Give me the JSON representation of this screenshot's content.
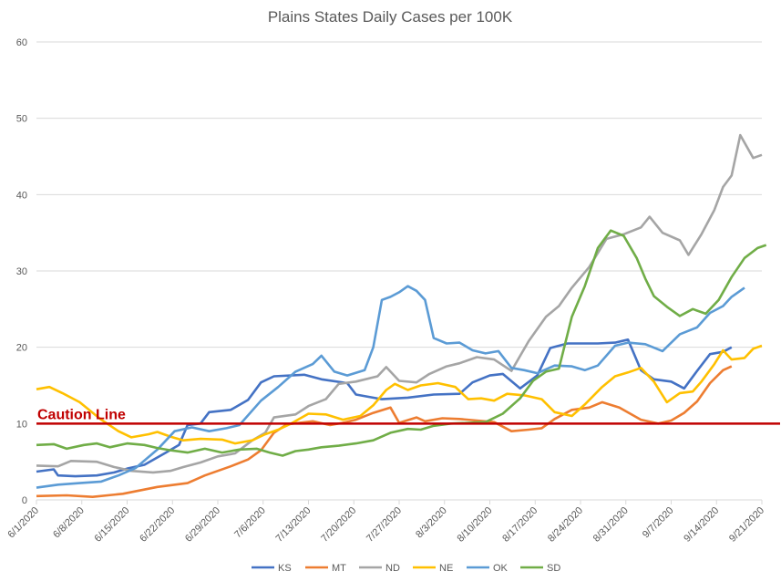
{
  "chart_data": {
    "type": "line",
    "title": "Plains States Daily Cases per 100K",
    "x_tick_labels": [
      "6/1/2020",
      "6/8/2020",
      "6/15/2020",
      "6/22/2020",
      "6/29/2020",
      "7/6/2020",
      "7/13/2020",
      "7/20/2020",
      "7/27/2020",
      "8/3/2020",
      "8/10/2020",
      "8/17/2020",
      "8/24/2020",
      "8/31/2020",
      "9/7/2020",
      "9/14/2020",
      "9/21/2020"
    ],
    "y_ticks": [
      0,
      10,
      20,
      30,
      40,
      50,
      60
    ],
    "ylim": [
      0,
      60
    ],
    "grid": "horizontal",
    "legend": "bottom",
    "reference_line": {
      "label": "Caution Line",
      "value": 10,
      "color": "#c00000"
    },
    "series": [
      {
        "name": "KS",
        "color": "#4472c4",
        "values": [
          [
            0,
            3.7
          ],
          [
            4,
            4
          ],
          [
            5,
            3.2
          ],
          [
            9,
            3.1
          ],
          [
            14,
            3.2
          ],
          [
            18,
            3.6
          ],
          [
            21,
            4.1
          ],
          [
            25,
            4.6
          ],
          [
            30,
            6.2
          ],
          [
            33,
            7.2
          ],
          [
            35,
            9.8
          ],
          [
            38,
            10
          ],
          [
            40,
            11.5
          ],
          [
            45,
            11.8
          ],
          [
            49,
            13.1
          ],
          [
            52,
            15.4
          ],
          [
            55,
            16.2
          ],
          [
            62,
            16.4
          ],
          [
            66,
            15.8
          ],
          [
            72,
            15.3
          ],
          [
            74,
            13.8
          ],
          [
            80,
            13.2
          ],
          [
            86,
            13.4
          ],
          [
            92,
            13.8
          ],
          [
            98,
            13.9
          ],
          [
            101,
            15.4
          ],
          [
            105,
            16.3
          ],
          [
            108,
            16.5
          ],
          [
            112,
            14.6
          ],
          [
            116,
            16.3
          ],
          [
            119,
            19.9
          ],
          [
            123,
            20.5
          ],
          [
            130,
            20.5
          ],
          [
            134,
            20.6
          ],
          [
            137,
            21
          ],
          [
            140,
            17
          ],
          [
            143,
            15.8
          ],
          [
            147,
            15.5
          ],
          [
            150,
            14.6
          ],
          [
            153,
            16.9
          ],
          [
            156,
            19.1
          ],
          [
            159,
            19.4
          ],
          [
            161,
            20
          ]
        ]
      },
      {
        "name": "MT",
        "color": "#ed7d31",
        "values": [
          [
            0,
            0.5
          ],
          [
            7,
            0.6
          ],
          [
            13,
            0.4
          ],
          [
            20,
            0.8
          ],
          [
            28,
            1.7
          ],
          [
            35,
            2.2
          ],
          [
            39,
            3.2
          ],
          [
            45,
            4.4
          ],
          [
            49,
            5.3
          ],
          [
            52,
            6.5
          ],
          [
            55,
            8.8
          ],
          [
            58,
            9.9
          ],
          [
            64,
            10.3
          ],
          [
            68,
            9.8
          ],
          [
            71,
            10.1
          ],
          [
            74,
            10.5
          ],
          [
            78,
            11.4
          ],
          [
            82,
            12.1
          ],
          [
            84,
            10.1
          ],
          [
            88,
            10.8
          ],
          [
            90,
            10.3
          ],
          [
            94,
            10.7
          ],
          [
            98,
            10.6
          ],
          [
            102,
            10.4
          ],
          [
            106,
            10.2
          ],
          [
            110,
            9
          ],
          [
            114,
            9.2
          ],
          [
            117,
            9.4
          ],
          [
            120,
            10.6
          ],
          [
            124,
            11.8
          ],
          [
            128,
            12.1
          ],
          [
            131,
            12.8
          ],
          [
            135,
            12.1
          ],
          [
            140,
            10.5
          ],
          [
            144,
            10
          ],
          [
            147,
            10.4
          ],
          [
            150,
            11.4
          ],
          [
            153,
            12.9
          ],
          [
            156,
            15.3
          ],
          [
            159,
            17
          ],
          [
            161,
            17.5
          ]
        ]
      },
      {
        "name": "ND",
        "color": "#a5a5a5",
        "values": [
          [
            0,
            4.5
          ],
          [
            5,
            4.4
          ],
          [
            8,
            5.1
          ],
          [
            14,
            5
          ],
          [
            18,
            4.3
          ],
          [
            22,
            3.8
          ],
          [
            27,
            3.6
          ],
          [
            31,
            3.8
          ],
          [
            34,
            4.3
          ],
          [
            38,
            4.9
          ],
          [
            42,
            5.7
          ],
          [
            46,
            6.1
          ],
          [
            50,
            7.8
          ],
          [
            53,
            8.8
          ],
          [
            55,
            10.8
          ],
          [
            60,
            11.2
          ],
          [
            63,
            12.3
          ],
          [
            67,
            13.2
          ],
          [
            70,
            15.2
          ],
          [
            74,
            15.5
          ],
          [
            79,
            16.2
          ],
          [
            81,
            17.4
          ],
          [
            84,
            15.6
          ],
          [
            88,
            15.4
          ],
          [
            91,
            16.5
          ],
          [
            95,
            17.5
          ],
          [
            98,
            17.9
          ],
          [
            102,
            18.7
          ],
          [
            106,
            18.4
          ],
          [
            110,
            16.9
          ],
          [
            114,
            20.8
          ],
          [
            118,
            24
          ],
          [
            121,
            25.4
          ],
          [
            124,
            27.8
          ],
          [
            128,
            30.5
          ],
          [
            132,
            34.2
          ],
          [
            136,
            34.8
          ],
          [
            140,
            35.7
          ],
          [
            142,
            37.1
          ],
          [
            145,
            35
          ],
          [
            149,
            34
          ],
          [
            151,
            32.1
          ],
          [
            154,
            34.8
          ],
          [
            157,
            38
          ],
          [
            159,
            41
          ],
          [
            161,
            42.5
          ],
          [
            163,
            47.8
          ],
          [
            166,
            44.8
          ],
          [
            168,
            45.2
          ]
        ]
      },
      {
        "name": "NE",
        "color": "#ffc000",
        "values": [
          [
            0,
            14.5
          ],
          [
            3,
            14.8
          ],
          [
            6,
            14
          ],
          [
            10,
            12.8
          ],
          [
            15,
            10.5
          ],
          [
            19,
            9
          ],
          [
            22,
            8.2
          ],
          [
            26,
            8.6
          ],
          [
            28,
            8.9
          ],
          [
            31,
            8.3
          ],
          [
            34,
            7.8
          ],
          [
            38,
            8
          ],
          [
            43,
            7.9
          ],
          [
            46,
            7.4
          ],
          [
            50,
            7.8
          ],
          [
            53,
            8.6
          ],
          [
            56,
            9.2
          ],
          [
            59,
            10
          ],
          [
            63,
            11.3
          ],
          [
            67,
            11.2
          ],
          [
            71,
            10.5
          ],
          [
            75,
            11
          ],
          [
            78,
            12.4
          ],
          [
            81,
            14.4
          ],
          [
            83,
            15.2
          ],
          [
            86,
            14.4
          ],
          [
            89,
            15
          ],
          [
            93,
            15.3
          ],
          [
            97,
            14.8
          ],
          [
            100,
            13.2
          ],
          [
            103,
            13.3
          ],
          [
            106,
            13
          ],
          [
            109,
            13.9
          ],
          [
            113,
            13.7
          ],
          [
            117,
            13.2
          ],
          [
            120,
            11.5
          ],
          [
            124,
            11
          ],
          [
            127,
            12.5
          ],
          [
            131,
            14.8
          ],
          [
            134,
            16.2
          ],
          [
            137,
            16.7
          ],
          [
            140,
            17.3
          ],
          [
            143,
            15.5
          ],
          [
            146,
            12.8
          ],
          [
            149,
            14
          ],
          [
            152,
            14.2
          ],
          [
            154,
            15.5
          ],
          [
            157,
            17.8
          ],
          [
            159,
            19.6
          ],
          [
            161,
            18.4
          ],
          [
            164,
            18.6
          ],
          [
            166,
            19.8
          ],
          [
            168,
            20.2
          ]
        ]
      },
      {
        "name": "OK",
        "color": "#5b9bd5",
        "values": [
          [
            0,
            1.6
          ],
          [
            5,
            2
          ],
          [
            10,
            2.2
          ],
          [
            15,
            2.4
          ],
          [
            19,
            3.2
          ],
          [
            23,
            4.2
          ],
          [
            28,
            6.6
          ],
          [
            32,
            9
          ],
          [
            36,
            9.5
          ],
          [
            40,
            9
          ],
          [
            44,
            9.4
          ],
          [
            47,
            9.8
          ],
          [
            52,
            13
          ],
          [
            56,
            14.8
          ],
          [
            60,
            16.8
          ],
          [
            64,
            17.8
          ],
          [
            66,
            18.9
          ],
          [
            69,
            16.8
          ],
          [
            72,
            16.3
          ],
          [
            76,
            17
          ],
          [
            78,
            20
          ],
          [
            80,
            26.2
          ],
          [
            82,
            26.6
          ],
          [
            84,
            27.2
          ],
          [
            86,
            28
          ],
          [
            88,
            27.4
          ],
          [
            90,
            26.2
          ],
          [
            92,
            21.2
          ],
          [
            95,
            20.5
          ],
          [
            98,
            20.6
          ],
          [
            101,
            19.6
          ],
          [
            104,
            19.2
          ],
          [
            107,
            19.5
          ],
          [
            110,
            17.3
          ],
          [
            113,
            17
          ],
          [
            116,
            16.6
          ],
          [
            120,
            17.6
          ],
          [
            124,
            17.5
          ],
          [
            127,
            17
          ],
          [
            130,
            17.6
          ],
          [
            134,
            20.2
          ],
          [
            137,
            20.6
          ],
          [
            141,
            20.4
          ],
          [
            145,
            19.5
          ],
          [
            149,
            21.7
          ],
          [
            153,
            22.6
          ],
          [
            156,
            24.5
          ],
          [
            159,
            25.4
          ],
          [
            161,
            26.6
          ],
          [
            164,
            27.8
          ]
        ]
      },
      {
        "name": "SD",
        "color": "#70ad47",
        "values": [
          [
            0,
            7.2
          ],
          [
            4,
            7.3
          ],
          [
            7,
            6.7
          ],
          [
            11,
            7.2
          ],
          [
            14,
            7.4
          ],
          [
            17,
            6.9
          ],
          [
            21,
            7.4
          ],
          [
            25,
            7.2
          ],
          [
            28,
            6.8
          ],
          [
            31,
            6.5
          ],
          [
            35,
            6.2
          ],
          [
            39,
            6.7
          ],
          [
            43,
            6.2
          ],
          [
            47,
            6.6
          ],
          [
            51,
            6.7
          ],
          [
            54,
            6.2
          ],
          [
            57,
            5.8
          ],
          [
            60,
            6.4
          ],
          [
            63,
            6.6
          ],
          [
            66,
            6.9
          ],
          [
            70,
            7.1
          ],
          [
            74,
            7.4
          ],
          [
            78,
            7.8
          ],
          [
            82,
            8.8
          ],
          [
            86,
            9.3
          ],
          [
            89,
            9.2
          ],
          [
            92,
            9.7
          ],
          [
            96,
            10
          ],
          [
            100,
            10.1
          ],
          [
            104,
            10.2
          ],
          [
            108,
            11.3
          ],
          [
            112,
            13.3
          ],
          [
            115,
            15.6
          ],
          [
            118,
            16.8
          ],
          [
            121,
            17.2
          ],
          [
            124,
            24
          ],
          [
            127,
            28
          ],
          [
            130,
            33
          ],
          [
            133,
            35.3
          ],
          [
            136,
            34.6
          ],
          [
            139,
            31.7
          ],
          [
            141,
            29
          ],
          [
            143,
            26.7
          ],
          [
            146,
            25.3
          ],
          [
            149,
            24.1
          ],
          [
            152,
            25
          ],
          [
            155,
            24.4
          ],
          [
            158,
            26.2
          ],
          [
            161,
            29.2
          ],
          [
            164,
            31.7
          ],
          [
            167,
            33
          ],
          [
            169,
            33.4
          ]
        ]
      }
    ]
  }
}
